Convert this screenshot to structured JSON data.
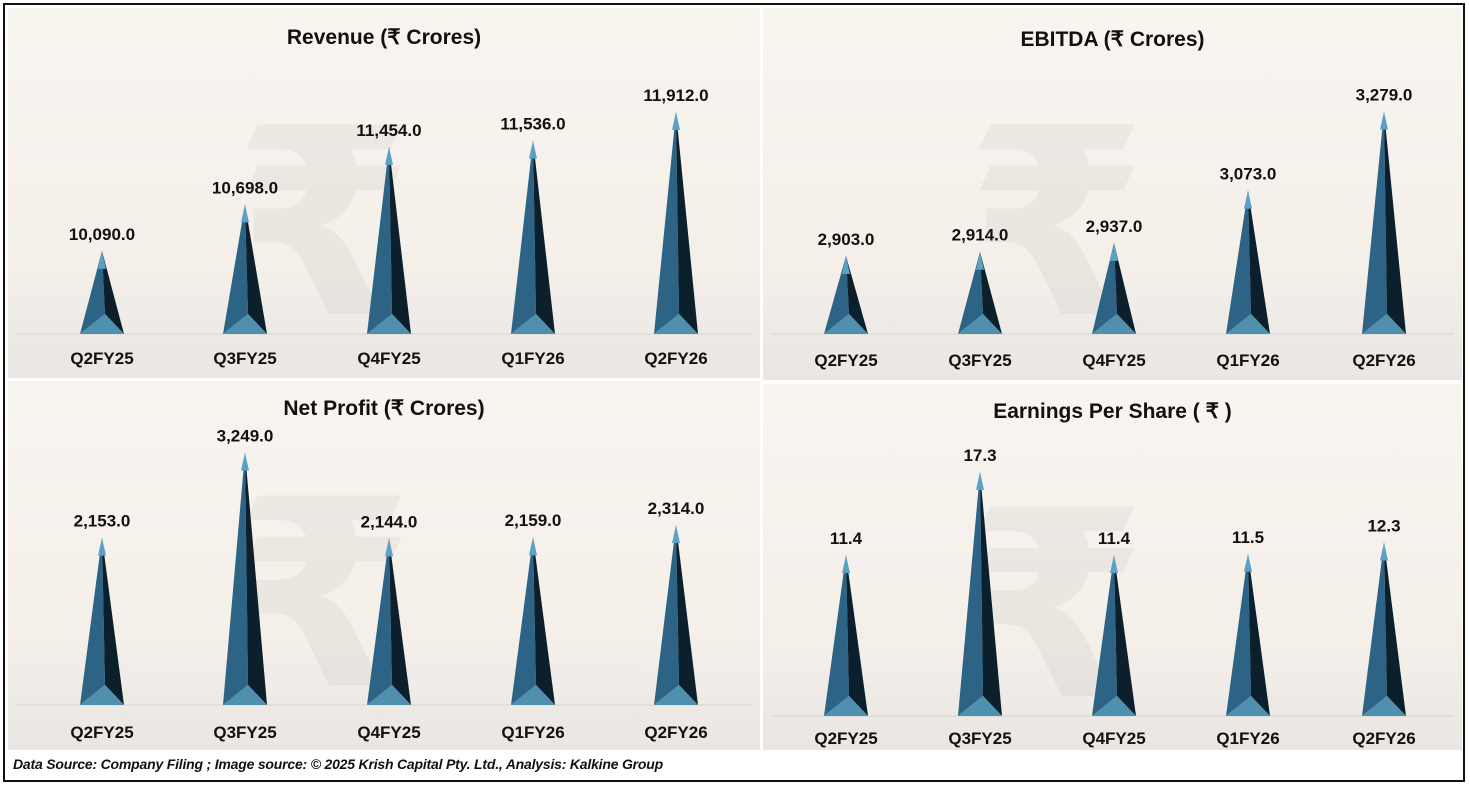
{
  "footer": "Data Source: Company Filing ; Image source: © 2025 Krish Capital Pty. Ltd., Analysis: Kalkine Group",
  "colors": {
    "face_light": "#2d6485",
    "face_dark": "#0b1f2c",
    "base_face": "#4f90ae",
    "apex": "#5aa2c4",
    "label": "#111111"
  },
  "chart_data": [
    {
      "type": "bar",
      "style": "pyramid",
      "title": "Revenue (₹ Crores)",
      "categories": [
        "Q2FY25",
        "Q3FY25",
        "Q4FY25",
        "Q1FY26",
        "Q2FY26"
      ],
      "values": [
        10090.0,
        10698.0,
        11454.0,
        11536.0,
        11912.0
      ],
      "labels": [
        "10,090.0",
        "10,698.0",
        "11,454.0",
        "11,536.0",
        "11,912.0"
      ],
      "ylim": [
        9000,
        12200
      ],
      "xlabel": "",
      "ylabel": "",
      "grid": false
    },
    {
      "type": "bar",
      "style": "pyramid",
      "title": "EBITDA (₹ Crores)",
      "categories": [
        "Q2FY25",
        "Q3FY25",
        "Q4FY25",
        "Q1FY26",
        "Q2FY26"
      ],
      "values": [
        2903.0,
        2914.0,
        2937.0,
        3073.0,
        3279.0
      ],
      "labels": [
        "2,903.0",
        "2,914.0",
        "2,937.0",
        "3,073.0",
        "3,279.0"
      ],
      "ylim": [
        2700,
        3340
      ],
      "xlabel": "",
      "ylabel": "",
      "grid": false
    },
    {
      "type": "bar",
      "style": "pyramid",
      "title": "Net Profit (₹ Crores)",
      "categories": [
        "Q2FY25",
        "Q3FY25",
        "Q4FY25",
        "Q1FY26",
        "Q2FY26"
      ],
      "values": [
        2153.0,
        3249.0,
        2144.0,
        2159.0,
        2314.0
      ],
      "labels": [
        "2,153.0",
        "3,249.0",
        "2,144.0",
        "2,159.0",
        "2,314.0"
      ],
      "ylim": [
        0,
        3500
      ],
      "xlabel": "",
      "ylabel": "",
      "grid": false
    },
    {
      "type": "bar",
      "style": "pyramid",
      "title": "Earnings Per Share ( ₹ )",
      "categories": [
        "Q2FY25",
        "Q3FY25",
        "Q4FY25",
        "Q1FY26",
        "Q2FY26"
      ],
      "values": [
        11.4,
        17.3,
        11.4,
        11.5,
        12.3
      ],
      "labels": [
        "11.4",
        "17.3",
        "11.4",
        "11.5",
        "12.3"
      ],
      "ylim": [
        0,
        18.5
      ],
      "xlabel": "",
      "ylabel": "",
      "grid": false
    }
  ]
}
